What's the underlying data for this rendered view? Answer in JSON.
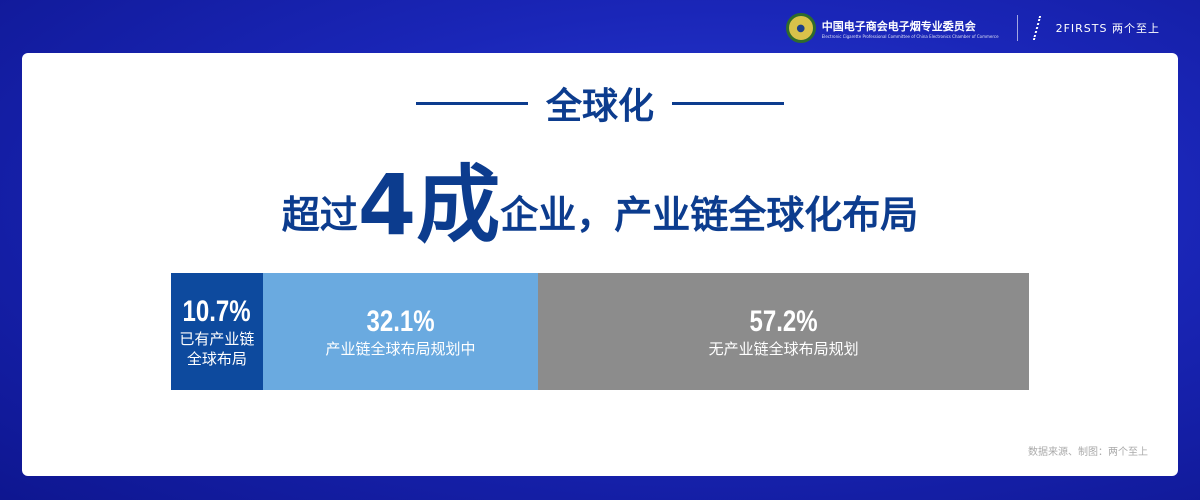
{
  "header": {
    "org_cn": "中国电子商会电子烟专业委员会",
    "org_en": "Electronic Cigarette Professional Committee of China Electronics Chamber of Commerce",
    "brand": "2FIRSTS 两个至上"
  },
  "title": "全球化",
  "headline": {
    "prefix": "超过",
    "big": "4成",
    "suffix": "企业，产业链全球化布局"
  },
  "chart_data": {
    "type": "bar",
    "stacked": true,
    "orientation": "horizontal",
    "unit": "%",
    "segments": [
      {
        "value": 10.7,
        "label_value": "10.7%",
        "label": "已有产业链全球布局",
        "color": "#0d4a9e"
      },
      {
        "value": 32.1,
        "label_value": "32.1%",
        "label": "产业链全球布局规划中",
        "color": "#6aaae0"
      },
      {
        "value": 57.2,
        "label_value": "57.2%",
        "label": "无产业链全球布局规划",
        "color": "#8c8c8c"
      }
    ]
  },
  "source": "数据来源、制图：两个至上"
}
